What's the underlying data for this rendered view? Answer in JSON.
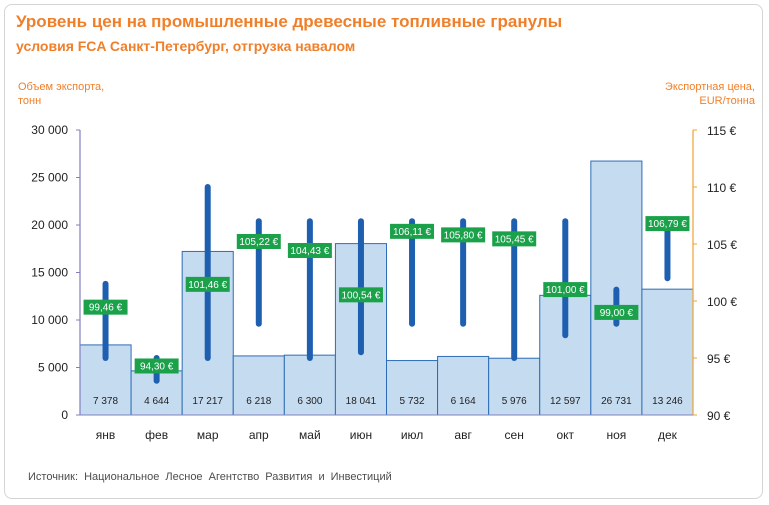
{
  "title": "Уровень цен на промышленные древесные топливные гранулы",
  "subtitle": "условия FCA Санкт-Петербург, отгрузка навалом",
  "left_axis_label_line1": "Объем экспорта,",
  "left_axis_label_line2": "тонн",
  "right_axis_label_line1": "Экспортная цена,",
  "right_axis_label_line2": "EUR/тонна",
  "source": "Источник: Национальное Лесное Агентство Развития и Инвестиций",
  "colors": {
    "title": "#f07f2a",
    "bar_fill": "#c5dcf0",
    "bar_stroke": "#2d6db5",
    "range_line": "#1f5fb0",
    "price_label_bg": "#1aa14a",
    "left_axis": "#8080c0",
    "right_axis": "#f0a030"
  },
  "chart_data": {
    "type": "bar",
    "categories": [
      "янв",
      "фев",
      "мар",
      "апр",
      "май",
      "июн",
      "июл",
      "авг",
      "сен",
      "окт",
      "ноя",
      "дек"
    ],
    "series": [
      {
        "name": "Объем экспорта, тонн",
        "axis": "left",
        "values": [
          7378,
          4644,
          17217,
          6218,
          6300,
          18041,
          5732,
          6164,
          5976,
          12597,
          26731,
          13246
        ],
        "labels": [
          "7 378",
          "4 644",
          "17 217",
          "6 218",
          "6 300",
          "18 041",
          "5 732",
          "6 164",
          "5 976",
          "12 597",
          "26 731",
          "13 246"
        ]
      },
      {
        "name": "Экспортная цена, EUR/тонна",
        "axis": "right",
        "type": "range",
        "values": [
          99.46,
          94.3,
          101.46,
          105.22,
          104.43,
          100.54,
          106.11,
          105.8,
          105.45,
          101.0,
          99.0,
          106.79
        ],
        "labels": [
          "99,46 €",
          "94,30 €",
          "101,46 €",
          "105,22 €",
          "104,43 €",
          "100,54 €",
          "106,11 €",
          "105,80 €",
          "105,45 €",
          "101,00 €",
          "99,00 €",
          "106,79 €"
        ],
        "low": [
          95,
          93,
          95,
          98,
          95,
          95.5,
          98,
          98,
          95,
          97,
          98,
          102
        ],
        "high": [
          101.5,
          95,
          110,
          107,
          107,
          107,
          107,
          107,
          107,
          107,
          101,
          106.5
        ]
      }
    ],
    "y_left": {
      "ylim": [
        0,
        30000
      ],
      "ticks": [
        0,
        5000,
        10000,
        15000,
        20000,
        25000,
        30000
      ],
      "tick_labels": [
        "0",
        "5 000",
        "10 000",
        "15 000",
        "20 000",
        "25 000",
        "30 000"
      ]
    },
    "y_right": {
      "ylim": [
        90,
        115
      ],
      "ticks": [
        90,
        95,
        100,
        105,
        110,
        115
      ],
      "tick_labels": [
        "90 €",
        "95 €",
        "100 €",
        "105 €",
        "110 €",
        "115 €"
      ]
    },
    "grid": false,
    "legend": "none"
  }
}
